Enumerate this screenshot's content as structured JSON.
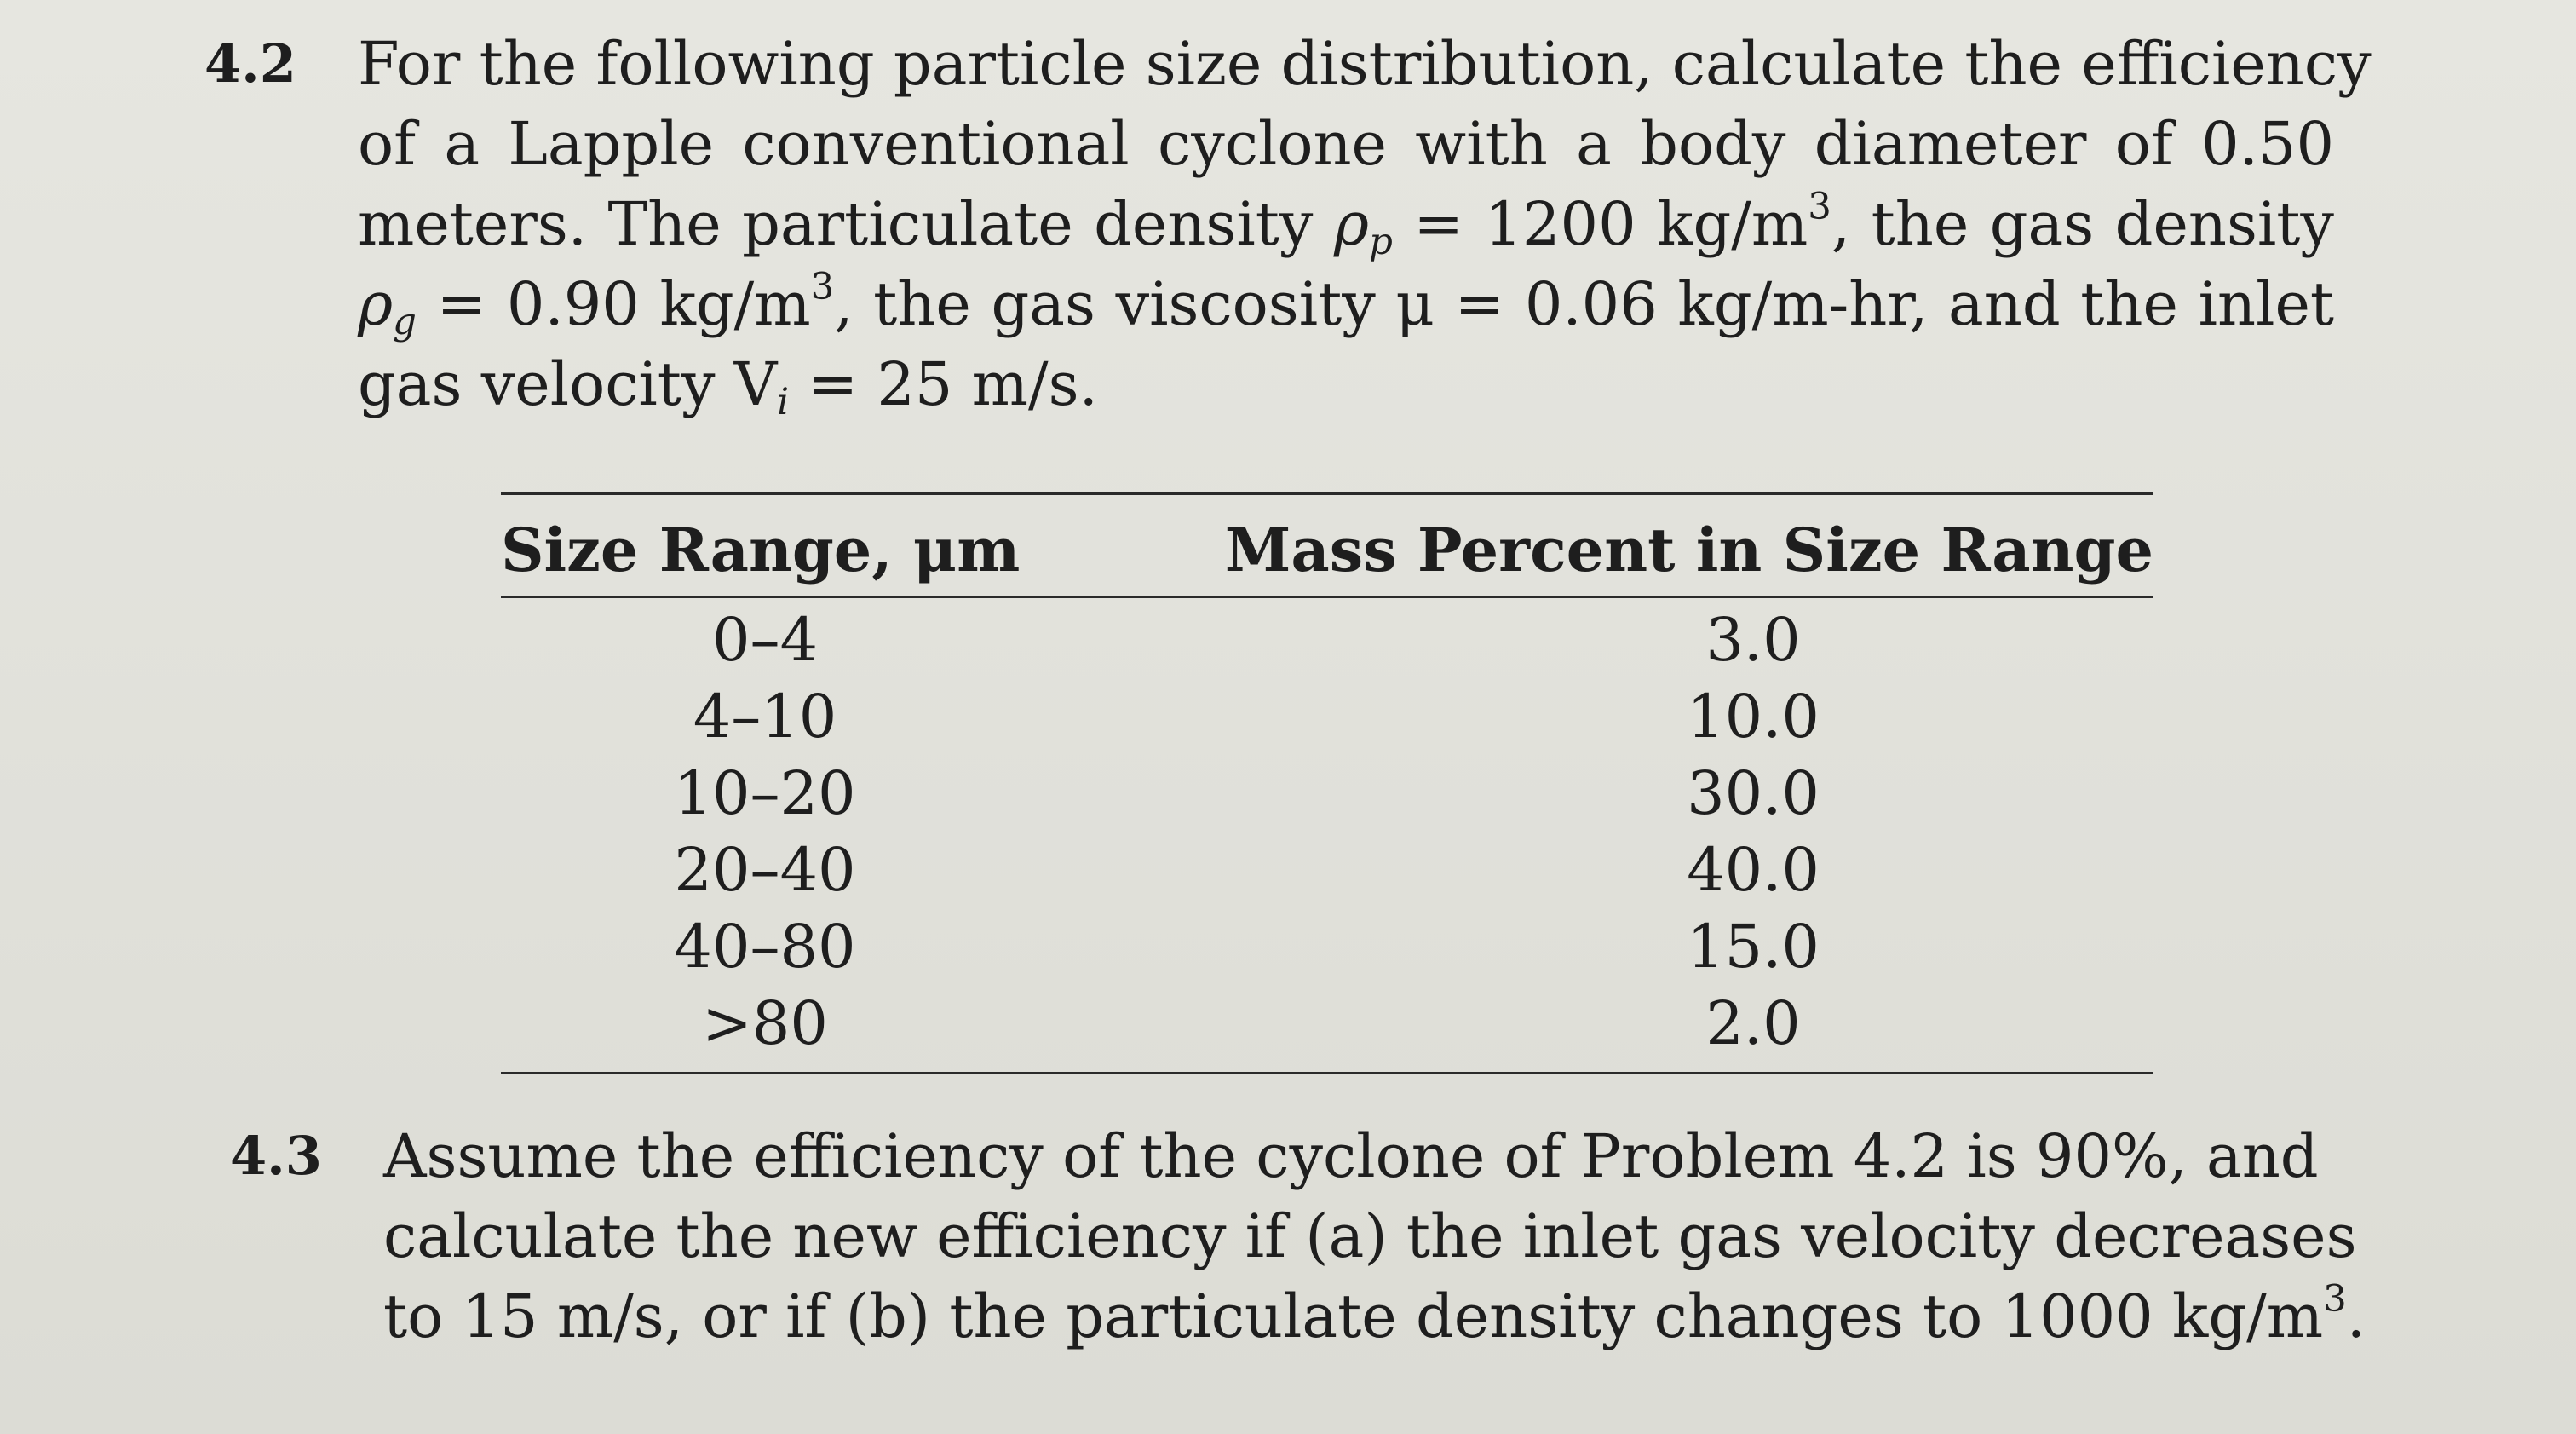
{
  "problem_4_2": {
    "number": "4.2",
    "lines": [
      "For the following particle size distribution, calculate the efficiency",
      "of a Lapple conventional cyclone with a body diameter of 0.50",
      "meters. The particulate density",
      "= 1200 kg/m",
      ", the gas density",
      "= 0.90 kg/m",
      ", the gas viscosity μ = 0.06 kg/m-hr, and the inlet",
      "gas velocity V",
      "= 25 m/s."
    ],
    "symbols": {
      "rho": "ρ",
      "sub_p": "p",
      "sub_g": "g",
      "sub_i": "i",
      "sup_3": "3"
    }
  },
  "table": {
    "headers": [
      "Size Range, μm",
      "Mass Percent in Size Range"
    ],
    "rows": [
      {
        "range": "0–4",
        "mass": "3.0"
      },
      {
        "range": "4–10",
        "mass": "10.0"
      },
      {
        "range": "10–20",
        "mass": "30.0"
      },
      {
        "range": "20–40",
        "mass": "40.0"
      },
      {
        "range": "40–80",
        "mass": "15.0"
      },
      {
        "range": ">80",
        "mass": "2.0"
      }
    ]
  },
  "problem_4_3": {
    "number": "4.3",
    "lines": [
      "Assume the efficiency of the cyclone of Problem 4.2 is 90%, and",
      "calculate the new efficiency if (a) the inlet gas velocity decreases",
      "to 15 m/s, or if (b) the particulate density changes to 1000 kg/m",
      "."
    ]
  }
}
